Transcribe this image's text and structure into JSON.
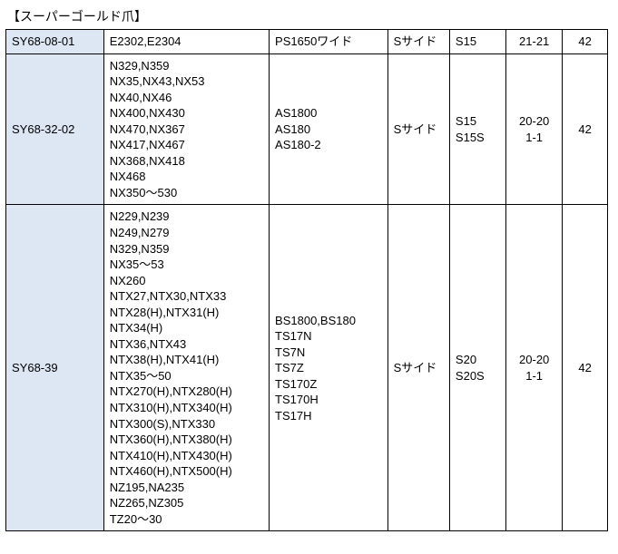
{
  "title": "【スーパーゴールド爪】",
  "table": {
    "columns": {
      "col1_bg": "#DDE6F3",
      "border_color": "#000000"
    },
    "rows": [
      {
        "c1": "SY68-08-01",
        "c2": "E2302,E2304",
        "c3": "PS1650ワイド",
        "c4": "Sサイド",
        "c5": "S15",
        "c6": "21-21",
        "c7": "42"
      },
      {
        "c1": "SY68-32-02",
        "c2": "N329,N359\nNX35,NX43,NX53\nNX40,NX46\nNX400,NX430\nNX470,NX367\nNX417,NX467\nNX368,NX418\nNX468\nNX350～530",
        "c3": "AS1800\nAS180\nAS180-2",
        "c4": "Sサイド",
        "c5": "S15\nS15S",
        "c6": "20-20\n1-1",
        "c7": "42"
      },
      {
        "c1": "SY68-39",
        "c2": "N229,N239\nN249,N279\nN329,N359\nNX35～53\nNX260\nNTX27,NTX30,NTX33\nNTX28(H),NTX31(H)\nNTX34(H)\nNTX36,NTX43\nNTX38(H),NTX41(H)\nNTX35～50\nNTX270(H),NTX280(H)\nNTX310(H),NTX340(H)\nNTX300(S),NTX330\nNTX360(H),NTX380(H)\nNTX410(H),NTX430(H)\nNTX460(H),NTX500(H)\nNZ195,NA235\nNZ265,NZ305\nTZ20～30",
        "c3": "BS1800,BS180\nTS17N\nTS7N\nTS7Z\nTS170Z\nTS170H\nTS17H",
        "c4": "Sサイド",
        "c5": "S20\nS20S",
        "c6": "20-20\n1-1",
        "c7": "42"
      }
    ]
  }
}
